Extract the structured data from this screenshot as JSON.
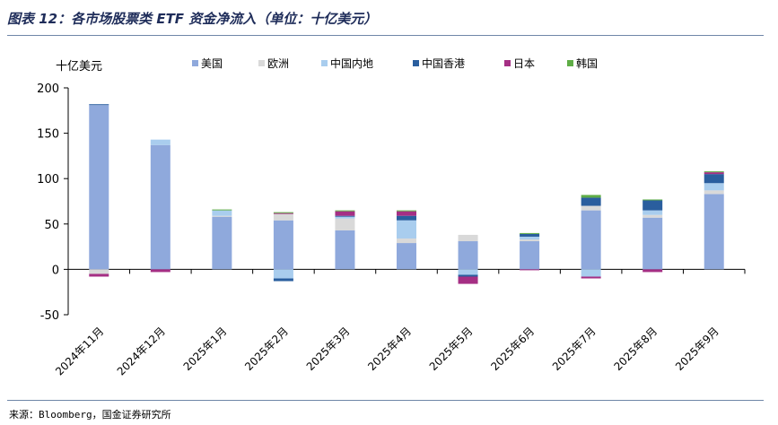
{
  "header": {
    "title": "图表 12：各市场股票类 ETF 资金净流入（单位：十亿美元）"
  },
  "footer": {
    "source": "来源：Bloomberg，国金证券研究所"
  },
  "chart_data": {
    "type": "bar",
    "stacked": true,
    "title": "图表 12：各市场股票类 ETF 资金净流入（单位：十亿美元）",
    "ylabel": "十亿美元",
    "xlabel": "",
    "ylim": [
      -50,
      200
    ],
    "yticks": [
      -50,
      0,
      50,
      100,
      150,
      200
    ],
    "legend_position": "top",
    "grid": false,
    "categories": [
      "2024年11月",
      "2024年12月",
      "2025年1月",
      "2025年2月",
      "2025年3月",
      "2025年4月",
      "2025年5月",
      "2025年6月",
      "2025年7月",
      "2025年8月",
      "2025年9月"
    ],
    "series": [
      {
        "name": "美国",
        "color": "#8fa9dc",
        "values": [
          181,
          137,
          58,
          54,
          43,
          29,
          31,
          31,
          65,
          57,
          83
        ]
      },
      {
        "name": "欧洲",
        "color": "#d9d9d9",
        "values": [
          -5,
          0,
          1,
          7,
          13,
          5,
          7,
          2,
          5,
          3,
          4
        ]
      },
      {
        "name": "中国内地",
        "color": "#a9cdee",
        "values": [
          0,
          6,
          6,
          -10,
          2,
          20,
          -6,
          3,
          -8,
          5,
          8
        ]
      },
      {
        "name": "中国香港",
        "color": "#2a5e9e",
        "values": [
          1,
          0,
          0,
          -3,
          1,
          5,
          -2,
          3,
          9,
          11,
          10
        ]
      },
      {
        "name": "日本",
        "color": "#a52f84",
        "values": [
          -3,
          -3,
          0,
          1,
          5,
          5,
          -8,
          -1,
          -2,
          -3,
          2
        ]
      },
      {
        "name": "韩国",
        "color": "#5fad46",
        "values": [
          0,
          0,
          1,
          1,
          1,
          1,
          0,
          1,
          3,
          1,
          1
        ]
      }
    ]
  }
}
